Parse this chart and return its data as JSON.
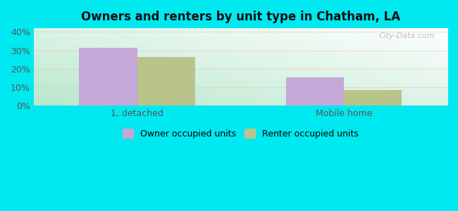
{
  "title": "Owners and renters by unit type in Chatham, LA",
  "categories": [
    "1, detached",
    "Mobile home"
  ],
  "owner_values": [
    31.5,
    15.2
  ],
  "renter_values": [
    26.3,
    8.7
  ],
  "owner_color": "#c5a8d8",
  "renter_color": "#b8c48a",
  "yticks": [
    0,
    10,
    20,
    30,
    40
  ],
  "ylim": [
    0,
    42
  ],
  "bar_width": 0.28,
  "outer_bg": "#00e8f0",
  "legend_labels": [
    "Owner occupied units",
    "Renter occupied units"
  ],
  "watermark": "City-Data.com",
  "bg_corner_tl": "#e8f5ee",
  "bg_corner_tr": "#f8fdf8",
  "bg_corner_bl": "#b8e8cc",
  "bg_corner_br": "#eef8f0"
}
